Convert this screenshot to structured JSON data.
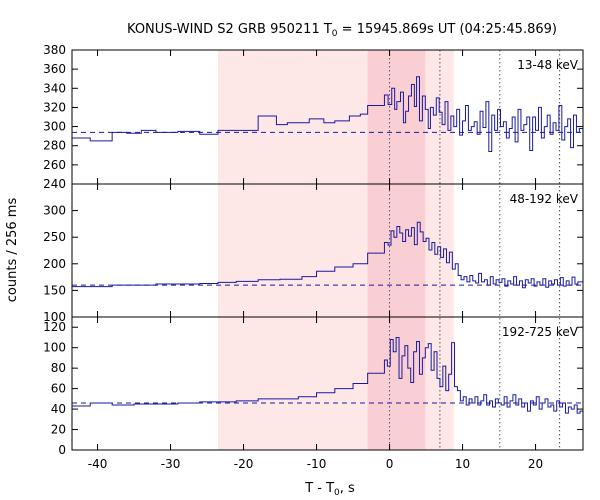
{
  "chart_data": {
    "type": "line",
    "title_prefix": "KONUS-WIND S2 GRB 950211 T",
    "title_sub": "0",
    "title_suffix": " = 15945.869s UT (04:25:45.869)",
    "xlabel_prefix": "T - T",
    "xlabel_sub": "0",
    "xlabel_suffix": ", s",
    "ylabel": "counts / 256 ms",
    "xlim": [
      -43.5,
      26.5
    ],
    "x_ticks": [
      -40,
      -30,
      -20,
      -10,
      0,
      10,
      20
    ],
    "grid": false,
    "shaded_intervals": [
      {
        "from": -23.5,
        "to": 8.8,
        "color": "#fde7e7"
      },
      {
        "from": -3.0,
        "to": 4.9,
        "color": "#f9cfd3"
      }
    ],
    "vertical_markers": [
      0,
      6.9,
      15.1,
      23.3
    ],
    "series_color": "#1a1aa0",
    "panels": [
      {
        "label": "13-48 keV",
        "ylim": [
          240,
          380
        ],
        "y_ticks": [
          240,
          260,
          280,
          300,
          320,
          340,
          360,
          380
        ],
        "background": 294,
        "steps": [
          [
            -43.5,
            288
          ],
          [
            -41.0,
            285
          ],
          [
            -38.0,
            294
          ],
          [
            -36.0,
            293
          ],
          [
            -34.0,
            296
          ],
          [
            -32.0,
            294
          ],
          [
            -29.0,
            295
          ],
          [
            -26.0,
            292
          ],
          [
            -23.5,
            296
          ],
          [
            -21.0,
            296
          ],
          [
            -18.0,
            311
          ],
          [
            -15.5,
            302
          ],
          [
            -14.0,
            304
          ],
          [
            -12.5,
            304
          ],
          [
            -11.0,
            308
          ],
          [
            -9.0,
            304
          ],
          [
            -7.5,
            306
          ],
          [
            -5.5,
            311
          ],
          [
            -4.0,
            313
          ],
          [
            -3.0,
            322
          ],
          [
            -0.7,
            333
          ],
          [
            -0.2,
            323
          ],
          [
            0.3,
            340
          ],
          [
            0.7,
            318
          ],
          [
            1.0,
            326
          ],
          [
            1.5,
            336
          ],
          [
            1.9,
            304
          ],
          [
            2.2,
            316
          ],
          [
            2.6,
            332
          ],
          [
            3.0,
            344
          ],
          [
            3.4,
            321
          ],
          [
            3.7,
            352
          ],
          [
            4.1,
            306
          ],
          [
            4.5,
            332
          ],
          [
            4.9,
            318
          ],
          [
            5.3,
            298
          ],
          [
            5.6,
            320
          ],
          [
            6.0,
            312
          ],
          [
            6.4,
            330
          ],
          [
            6.8,
            315
          ],
          [
            7.2,
            302
          ],
          [
            7.6,
            326
          ],
          [
            8.0,
            296
          ],
          [
            8.4,
            311
          ],
          [
            8.8,
            300
          ],
          [
            9.2,
            318
          ],
          [
            9.6,
            291
          ],
          [
            10.0,
            306
          ],
          [
            10.4,
            322
          ],
          [
            10.8,
            296
          ],
          [
            11.2,
            300
          ],
          [
            11.6,
            305
          ],
          [
            12.0,
            292
          ],
          [
            12.4,
            316
          ],
          [
            12.8,
            299
          ],
          [
            13.2,
            326
          ],
          [
            13.6,
            274
          ],
          [
            14.0,
            312
          ],
          [
            14.4,
            296
          ],
          [
            14.8,
            318
          ],
          [
            15.2,
            300
          ],
          [
            15.6,
            305
          ],
          [
            16.0,
            288
          ],
          [
            16.4,
            298
          ],
          [
            16.8,
            310
          ],
          [
            17.2,
            284
          ],
          [
            17.6,
            318
          ],
          [
            18.0,
            296
          ],
          [
            18.4,
            302
          ],
          [
            18.8,
            310
          ],
          [
            19.2,
            275
          ],
          [
            19.6,
            310
          ],
          [
            20.0,
            296
          ],
          [
            20.4,
            320
          ],
          [
            20.8,
            288
          ],
          [
            21.2,
            300
          ],
          [
            21.6,
            312
          ],
          [
            22.0,
            292
          ],
          [
            22.4,
            304
          ],
          [
            22.8,
            296
          ],
          [
            23.2,
            322
          ],
          [
            23.6,
            286
          ],
          [
            24.0,
            300
          ],
          [
            24.4,
            308
          ],
          [
            24.8,
            278
          ],
          [
            25.2,
            312
          ],
          [
            25.6,
            294
          ],
          [
            26.0,
            298
          ],
          [
            26.5,
            298
          ]
        ]
      },
      {
        "label": "48-192 keV",
        "ylim": [
          100,
          350
        ],
        "y_ticks": [
          100,
          150,
          200,
          250,
          300
        ],
        "background": 160,
        "steps": [
          [
            -43.5,
            157
          ],
          [
            -41.0,
            157
          ],
          [
            -38.0,
            160
          ],
          [
            -35.0,
            160
          ],
          [
            -32.0,
            162
          ],
          [
            -29.0,
            162
          ],
          [
            -26.0,
            163
          ],
          [
            -23.5,
            165
          ],
          [
            -21.0,
            167
          ],
          [
            -18.0,
            170
          ],
          [
            -15.0,
            171
          ],
          [
            -12.0,
            176
          ],
          [
            -10.0,
            186
          ],
          [
            -7.5,
            194
          ],
          [
            -5.0,
            200
          ],
          [
            -3.0,
            220
          ],
          [
            -0.7,
            240
          ],
          [
            -0.2,
            235
          ],
          [
            0.2,
            262
          ],
          [
            0.6,
            250
          ],
          [
            1.0,
            270
          ],
          [
            1.4,
            258
          ],
          [
            1.8,
            242
          ],
          [
            2.2,
            264
          ],
          [
            2.6,
            252
          ],
          [
            3.0,
            268
          ],
          [
            3.4,
            236
          ],
          [
            3.8,
            278
          ],
          [
            4.2,
            260
          ],
          [
            4.6,
            242
          ],
          [
            5.0,
            248
          ],
          [
            5.4,
            226
          ],
          [
            5.8,
            240
          ],
          [
            6.2,
            218
          ],
          [
            6.6,
            232
          ],
          [
            7.0,
            212
          ],
          [
            7.4,
            228
          ],
          [
            7.8,
            202
          ],
          [
            8.2,
            222
          ],
          [
            8.6,
            190
          ],
          [
            9.0,
            200
          ],
          [
            9.4,
            178
          ],
          [
            9.8,
            170
          ],
          [
            10.2,
            176
          ],
          [
            10.6,
            166
          ],
          [
            11.0,
            178
          ],
          [
            11.4,
            168
          ],
          [
            11.8,
            164
          ],
          [
            12.2,
            182
          ],
          [
            12.6,
            166
          ],
          [
            13.0,
            170
          ],
          [
            13.4,
            160
          ],
          [
            13.8,
            176
          ],
          [
            14.2,
            162
          ],
          [
            14.6,
            170
          ],
          [
            15.0,
            165
          ],
          [
            15.4,
            172
          ],
          [
            15.8,
            158
          ],
          [
            16.2,
            168
          ],
          [
            16.6,
            162
          ],
          [
            17.0,
            176
          ],
          [
            17.4,
            160
          ],
          [
            17.8,
            168
          ],
          [
            18.2,
            155
          ],
          [
            18.6,
            170
          ],
          [
            19.0,
            164
          ],
          [
            19.4,
            172
          ],
          [
            19.8,
            158
          ],
          [
            20.2,
            166
          ],
          [
            20.6,
            160
          ],
          [
            21.0,
            172
          ],
          [
            21.4,
            156
          ],
          [
            21.8,
            168
          ],
          [
            22.2,
            162
          ],
          [
            22.6,
            170
          ],
          [
            23.0,
            160
          ],
          [
            23.4,
            174
          ],
          [
            23.8,
            158
          ],
          [
            24.2,
            168
          ],
          [
            24.6,
            160
          ],
          [
            25.0,
            175
          ],
          [
            25.4,
            162
          ],
          [
            25.8,
            166
          ],
          [
            26.5,
            166
          ]
        ]
      },
      {
        "label": "192-725 keV",
        "ylim": [
          0,
          130
        ],
        "y_ticks": [
          0,
          20,
          40,
          60,
          80,
          100,
          120
        ],
        "background": 46,
        "steps": [
          [
            -43.5,
            43
          ],
          [
            -41.0,
            46
          ],
          [
            -38.0,
            44
          ],
          [
            -35.0,
            45
          ],
          [
            -32.0,
            45
          ],
          [
            -29.0,
            46
          ],
          [
            -26.0,
            47
          ],
          [
            -23.5,
            47
          ],
          [
            -21.0,
            48
          ],
          [
            -18.0,
            50
          ],
          [
            -15.0,
            50
          ],
          [
            -12.5,
            52
          ],
          [
            -10.0,
            56
          ],
          [
            -7.5,
            60
          ],
          [
            -5.0,
            65
          ],
          [
            -3.0,
            75
          ],
          [
            -0.7,
            88
          ],
          [
            -0.3,
            82
          ],
          [
            0.1,
            108
          ],
          [
            0.5,
            96
          ],
          [
            0.9,
            110
          ],
          [
            1.3,
            70
          ],
          [
            1.7,
            92
          ],
          [
            2.1,
            102
          ],
          [
            2.5,
            80
          ],
          [
            2.9,
            66
          ],
          [
            3.3,
            96
          ],
          [
            3.7,
            106
          ],
          [
            4.1,
            74
          ],
          [
            4.5,
            90
          ],
          [
            4.9,
            100
          ],
          [
            5.3,
            104
          ],
          [
            5.7,
            78
          ],
          [
            6.1,
            96
          ],
          [
            6.5,
            70
          ],
          [
            6.9,
            62
          ],
          [
            7.3,
            82
          ],
          [
            7.7,
            58
          ],
          [
            8.1,
            74
          ],
          [
            8.5,
            105
          ],
          [
            8.9,
            62
          ],
          [
            9.3,
            58
          ],
          [
            9.7,
            48
          ],
          [
            10.1,
            52
          ],
          [
            10.5,
            44
          ],
          [
            10.9,
            50
          ],
          [
            11.3,
            46
          ],
          [
            11.7,
            52
          ],
          [
            12.1,
            44
          ],
          [
            12.5,
            48
          ],
          [
            12.9,
            54
          ],
          [
            13.3,
            44
          ],
          [
            13.7,
            48
          ],
          [
            14.1,
            42
          ],
          [
            14.5,
            50
          ],
          [
            14.9,
            46
          ],
          [
            15.3,
            44
          ],
          [
            15.7,
            52
          ],
          [
            16.1,
            42
          ],
          [
            16.5,
            48
          ],
          [
            16.9,
            54
          ],
          [
            17.3,
            44
          ],
          [
            17.7,
            50
          ],
          [
            18.1,
            42
          ],
          [
            18.5,
            46
          ],
          [
            18.9,
            38
          ],
          [
            19.3,
            48
          ],
          [
            19.7,
            44
          ],
          [
            20.1,
            52
          ],
          [
            20.5,
            40
          ],
          [
            20.9,
            46
          ],
          [
            21.3,
            50
          ],
          [
            21.7,
            42
          ],
          [
            22.1,
            44
          ],
          [
            22.5,
            38
          ],
          [
            22.9,
            48
          ],
          [
            23.3,
            42
          ],
          [
            23.7,
            46
          ],
          [
            24.1,
            36
          ],
          [
            24.5,
            42
          ],
          [
            24.9,
            40
          ],
          [
            25.3,
            44
          ],
          [
            25.7,
            36
          ],
          [
            26.1,
            38
          ],
          [
            26.5,
            38
          ]
        ]
      }
    ]
  }
}
